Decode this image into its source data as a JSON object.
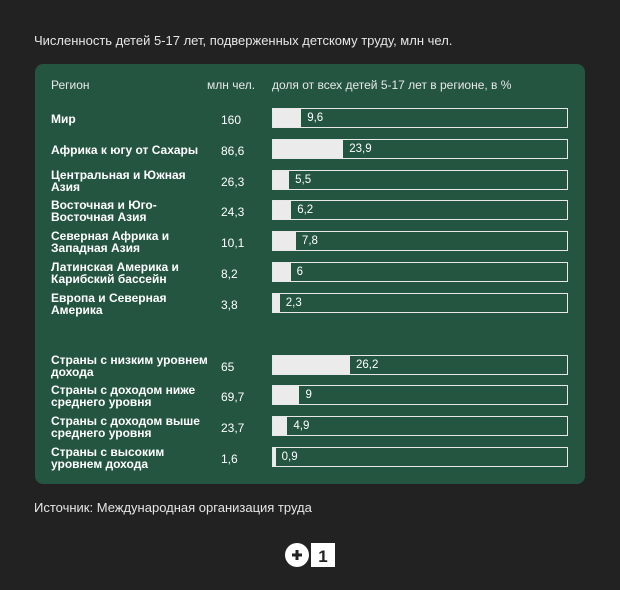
{
  "title": "Численность детей 5-17 лет, подверженных детскому труду, млн чел.",
  "headers": {
    "region": "Регион",
    "count": "млн чел.",
    "share": "доля от всех детей 5-17 лет в регионе, в %"
  },
  "source": "Источник: Международная организация труда",
  "logo": {
    "text": "+1"
  },
  "colors": {
    "background": "#222222",
    "panel": "#245540",
    "bar_fill": "#ebebeb"
  },
  "chart_data": {
    "type": "bar",
    "title": "Численность детей 5-17 лет, подверженных детскому труду, млн чел.",
    "xlim": [
      0,
      100
    ],
    "groups": [
      {
        "rows": [
          {
            "label": "Мир",
            "count": "160",
            "share": 9.6,
            "share_label": "9,6"
          },
          {
            "label": "Африка к югу от Сахары",
            "count": "86,6",
            "share": 23.9,
            "share_label": "23,9"
          },
          {
            "label": "Центральная и Южная Азия",
            "count": "26,3",
            "share": 5.5,
            "share_label": "5,5"
          },
          {
            "label": "Восточная и Юго-Восточная Азия",
            "count": "24,3",
            "share": 6.2,
            "share_label": "6,2"
          },
          {
            "label": "Северная Африка и Западная Азия",
            "count": "10,1",
            "share": 7.8,
            "share_label": "7,8"
          },
          {
            "label": "Латинская Америка и Карибский бассейн",
            "count": "8,2",
            "share": 6,
            "share_label": "6"
          },
          {
            "label": "Европа и Северная Америка",
            "count": "3,8",
            "share": 2.3,
            "share_label": "2,3"
          }
        ]
      },
      {
        "rows": [
          {
            "label": "Страны с низким уровнем дохода",
            "count": "65",
            "share": 26.2,
            "share_label": "26,2"
          },
          {
            "label": "Страны с доходом ниже среднего уровня",
            "count": "69,7",
            "share": 9,
            "share_label": "9"
          },
          {
            "label": "Страны с доходом выше среднего уровня",
            "count": "23,7",
            "share": 4.9,
            "share_label": "4,9"
          },
          {
            "label": "Страны с высоким уровнем дохода",
            "count": "1,6",
            "share": 0.9,
            "share_label": "0,9"
          }
        ]
      }
    ]
  }
}
